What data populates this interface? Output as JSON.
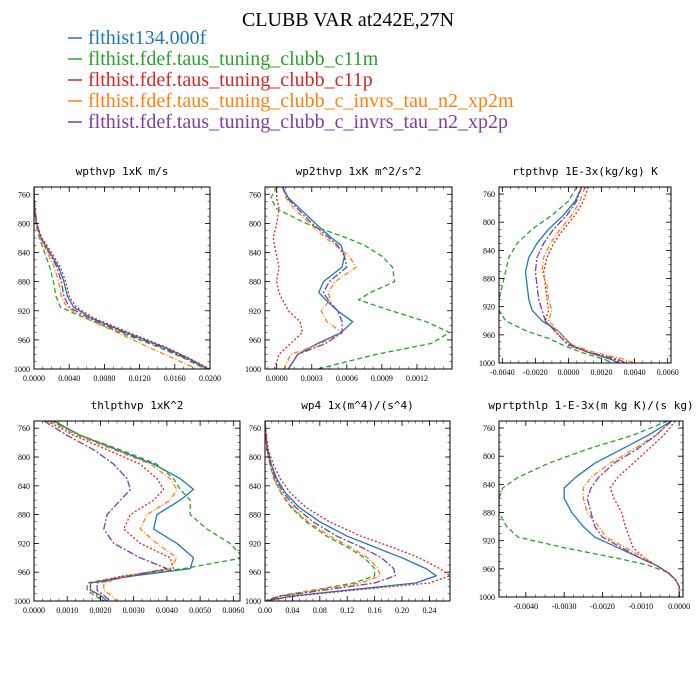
{
  "figure": {
    "title": "CLUBB VAR at242E,27N"
  },
  "legend": [
    {
      "name": "flthist134.000f",
      "color": "#1f77b4"
    },
    {
      "name": "flthist.fdef.taus_tuning_clubb_c11m",
      "color": "#2ca02c"
    },
    {
      "name": "flthist.fdef.taus_tuning_clubb_c11p",
      "color": "#d62728"
    },
    {
      "name": "flthist.fdef.taus_tuning_clubb_c_invrs_tau_n2_xp2m",
      "color": "#ff7f0e"
    },
    {
      "name": "flthist.fdef.taus_tuning_clubb_c_invrs_tau_n2_xp2p",
      "color": "#7b3f9e"
    }
  ],
  "chart_data": [
    {
      "type": "line",
      "title": "wpthvp  1xK m/s",
      "xlim": [
        0.0,
        0.02
      ],
      "ylim": [
        1000,
        750
      ],
      "xticks": [
        0.0,
        0.004,
        0.008,
        0.012,
        0.016,
        0.02
      ],
      "xticklabels": [
        "0.0000",
        "0.0040",
        "0.0080",
        "0.0120",
        "0.0160",
        "0.0200"
      ],
      "yticks": [
        760,
        800,
        840,
        880,
        920,
        960,
        1000
      ],
      "yticklabels": [
        "760",
        "800",
        "840",
        "880",
        "920",
        "960",
        "1000"
      ],
      "y": [
        750,
        760,
        780,
        800,
        820,
        840,
        860,
        880,
        900,
        915,
        930,
        950,
        970,
        985,
        1000
      ],
      "series": [
        {
          "x": [
            0.0,
            0.0,
            0.0001,
            0.0003,
            0.0008,
            0.0018,
            0.0028,
            0.0034,
            0.0038,
            0.0045,
            0.0065,
            0.0105,
            0.0148,
            0.0175,
            0.0198
          ]
        },
        {
          "x": [
            0.0,
            0.0,
            0.0001,
            0.0002,
            0.0006,
            0.0012,
            0.0018,
            0.0022,
            0.0025,
            0.003,
            0.0058,
            0.0098,
            0.0142,
            0.017,
            0.0195
          ]
        },
        {
          "x": [
            0.0,
            0.0,
            0.0001,
            0.0003,
            0.0009,
            0.002,
            0.003,
            0.0036,
            0.004,
            0.0048,
            0.0068,
            0.0108,
            0.015,
            0.0176,
            0.02
          ]
        },
        {
          "x": [
            0.0,
            0.0,
            0.0001,
            0.0002,
            0.0007,
            0.0015,
            0.0023,
            0.0028,
            0.0031,
            0.0037,
            0.0058,
            0.0095,
            0.013,
            0.0158,
            0.0185
          ]
        },
        {
          "x": [
            0.0,
            0.0,
            0.0001,
            0.0003,
            0.0008,
            0.0017,
            0.0026,
            0.0031,
            0.0034,
            0.004,
            0.0062,
            0.0102,
            0.0145,
            0.0172,
            0.0198
          ]
        }
      ]
    },
    {
      "type": "line",
      "title": "wp2thvp  1xK m^2/s^2",
      "xlim": [
        -0.0001,
        0.0015
      ],
      "ylim": [
        1000,
        750
      ],
      "xticks": [
        0.0,
        0.0003,
        0.0006,
        0.0009,
        0.0012
      ],
      "xticklabels": [
        "0.0000",
        "0.0003",
        "0.0006",
        "0.0009",
        "0.0012"
      ],
      "yticks": [
        760,
        800,
        840,
        880,
        920,
        960,
        1000
      ],
      "yticklabels": [
        "760",
        "800",
        "840",
        "880",
        "920",
        "960",
        "1000"
      ],
      "y": [
        750,
        765,
        780,
        800,
        820,
        830,
        845,
        860,
        880,
        895,
        905,
        920,
        935,
        950,
        965,
        980,
        1000
      ],
      "series": [
        {
          "x": [
            5e-05,
            0.0001,
            0.0002,
            0.00033,
            0.00047,
            0.00055,
            0.00058,
            0.00056,
            0.0004,
            0.00036,
            0.00042,
            0.00052,
            0.00065,
            0.00055,
            0.00035,
            0.00018,
            0.0001
          ]
        },
        {
          "x": [
            0.0,
            -5e-05,
            0.0,
            0.00025,
            0.0006,
            0.00075,
            0.0009,
            0.00099,
            0.00101,
            0.0008,
            0.0007,
            0.00098,
            0.00128,
            0.00148,
            0.00132,
            0.00085,
            0.00035
          ]
        },
        {
          "x": [
            0.0,
            0.0,
            2e-05,
            0.0,
            -3e-05,
            -2e-05,
            0.0,
            2e-05,
            0.0,
            2e-05,
            5e-05,
            0.0001,
            0.0002,
            0.00022,
            0.00012,
            2e-05,
            -2e-05
          ]
        },
        {
          "x": [
            5e-05,
            8e-05,
            0.00015,
            0.00028,
            0.00042,
            0.0005,
            0.00062,
            0.00068,
            0.0005,
            0.00044,
            0.00046,
            0.00038,
            0.00043,
            0.00056,
            0.00038,
            0.00012,
            6e-05
          ]
        },
        {
          "x": [
            5e-05,
            9e-05,
            0.00018,
            0.0003,
            0.00045,
            0.00052,
            0.00058,
            0.0006,
            0.00045,
            0.0004,
            0.00044,
            0.00052,
            0.00056,
            0.00056,
            0.00042,
            0.00018,
            0.0001
          ]
        }
      ]
    },
    {
      "type": "line",
      "title": "rtpthvp  1E-3x(kg/kg) K",
      "xlim": [
        -0.0042,
        0.0062
      ],
      "ylim": [
        1000,
        750
      ],
      "xticks": [
        -0.004,
        -0.002,
        0.0,
        0.002,
        0.004,
        0.006
      ],
      "xticklabels": [
        "-0.0040",
        "-0.0020",
        "0.0000",
        "0.0020",
        "0.0040",
        "0.0060"
      ],
      "yticks": [
        760,
        800,
        840,
        880,
        920,
        960,
        1000
      ],
      "yticklabels": [
        "760",
        "800",
        "840",
        "880",
        "920",
        "960",
        "1000"
      ],
      "y": [
        750,
        770,
        790,
        810,
        830,
        850,
        870,
        890,
        910,
        925,
        940,
        955,
        965,
        975,
        985,
        995,
        1000
      ],
      "series": [
        {
          "x": [
            0.0008,
            0.0004,
            -0.0003,
            -0.0012,
            -0.0019,
            -0.0024,
            -0.0026,
            -0.0025,
            -0.0024,
            -0.0022,
            -0.0016,
            -0.0006,
            -0.0002,
            0.0002,
            0.0012,
            0.0026,
            0.003
          ]
        },
        {
          "x": [
            0.0005,
            0.0,
            -0.001,
            -0.0022,
            -0.0031,
            -0.0036,
            -0.0038,
            -0.004,
            -0.0042,
            -0.0042,
            -0.0038,
            -0.0025,
            -0.0012,
            -0.0003,
            0.0008,
            0.0022,
            0.0026
          ]
        },
        {
          "x": [
            0.0012,
            0.0009,
            0.0004,
            -0.0003,
            -0.0009,
            -0.0013,
            -0.0015,
            -0.0014,
            -0.0013,
            -0.0012,
            -0.0014,
            -0.0008,
            -0.0004,
            0.0,
            0.0012,
            0.0028,
            0.0032
          ]
        },
        {
          "x": [
            0.001,
            0.0007,
            0.0002,
            -0.0005,
            -0.0011,
            -0.0015,
            -0.0016,
            -0.0013,
            -0.0012,
            -0.001,
            -0.0012,
            -0.0006,
            -0.0002,
            0.0003,
            0.0016,
            0.0034,
            0.004
          ]
        },
        {
          "x": [
            0.0008,
            0.0005,
            -0.0001,
            -0.0009,
            -0.0015,
            -0.0019,
            -0.002,
            -0.0019,
            -0.0018,
            -0.0016,
            -0.0014,
            -0.0008,
            -0.0004,
            0.0001,
            0.0013,
            0.003,
            0.0035
          ]
        }
      ]
    },
    {
      "type": "line",
      "title": "thlpthvp  1xK^2",
      "xlim": [
        0.0,
        0.0062
      ],
      "ylim": [
        1000,
        750
      ],
      "xticks": [
        0.0,
        0.001,
        0.002,
        0.003,
        0.004,
        0.005,
        0.006
      ],
      "xticklabels": [
        "0.0000",
        "0.0010",
        "0.0020",
        "0.0030",
        "0.0040",
        "0.0050",
        "0.0060"
      ],
      "yticks": [
        760,
        800,
        840,
        880,
        920,
        960,
        1000
      ],
      "yticklabels": [
        "760",
        "800",
        "840",
        "880",
        "920",
        "960",
        "1000"
      ],
      "y": [
        750,
        770,
        790,
        810,
        830,
        845,
        860,
        880,
        900,
        920,
        940,
        955,
        965,
        975,
        985,
        992,
        1000
      ],
      "series": [
        {
          "x": [
            0.0006,
            0.0014,
            0.0025,
            0.0036,
            0.0044,
            0.0048,
            0.0044,
            0.0037,
            0.0036,
            0.0043,
            0.0048,
            0.0047,
            0.003,
            0.0017,
            0.0017,
            0.002,
            0.0022
          ]
        },
        {
          "x": [
            0.0005,
            0.0014,
            0.0026,
            0.0037,
            0.0042,
            0.0044,
            0.0047,
            0.0047,
            0.0052,
            0.0059,
            0.0063,
            0.0045,
            0.0028,
            0.0016,
            0.0016,
            0.0018,
            0.0021
          ]
        },
        {
          "x": [
            0.0004,
            0.0012,
            0.0022,
            0.0032,
            0.0037,
            0.0039,
            0.0036,
            0.0029,
            0.0027,
            0.0032,
            0.0041,
            0.0042,
            0.0027,
            0.0017,
            0.0017,
            0.0019,
            0.0021
          ]
        },
        {
          "x": [
            0.0005,
            0.0013,
            0.0024,
            0.0035,
            0.0041,
            0.0043,
            0.0041,
            0.0034,
            0.0032,
            0.0037,
            0.0043,
            0.0041,
            0.0028,
            0.0021,
            0.0021,
            0.0023,
            0.0025
          ]
        },
        {
          "x": [
            0.0003,
            0.001,
            0.0018,
            0.0024,
            0.0028,
            0.0029,
            0.0026,
            0.0022,
            0.0021,
            0.0024,
            0.0032,
            0.004,
            0.0029,
            0.0019,
            0.0019,
            0.0021,
            0.0023
          ]
        }
      ]
    },
    {
      "type": "line",
      "title": "wp4  1x(m^4)/(s^4)",
      "xlim": [
        0.0,
        0.27
      ],
      "ylim": [
        1000,
        750
      ],
      "xticks": [
        0.0,
        0.04,
        0.08,
        0.12,
        0.16,
        0.2,
        0.24
      ],
      "xticklabels": [
        "0.00",
        "0.04",
        "0.08",
        "0.12",
        "0.16",
        "0.20",
        "0.24"
      ],
      "yticks": [
        760,
        800,
        840,
        880,
        920,
        960,
        1000
      ],
      "yticklabels": [
        "760",
        "800",
        "840",
        "880",
        "920",
        "960",
        "1000"
      ],
      "y": [
        750,
        770,
        790,
        810,
        830,
        850,
        870,
        890,
        910,
        925,
        940,
        955,
        965,
        975,
        985,
        993,
        1000
      ],
      "series": [
        {
          "x": [
            0.0,
            0.001,
            0.004,
            0.009,
            0.017,
            0.03,
            0.05,
            0.08,
            0.12,
            0.16,
            0.2,
            0.235,
            0.25,
            0.22,
            0.12,
            0.04,
            0.0
          ]
        },
        {
          "x": [
            0.0,
            0.001,
            0.003,
            0.007,
            0.013,
            0.023,
            0.038,
            0.06,
            0.09,
            0.12,
            0.145,
            0.16,
            0.16,
            0.13,
            0.07,
            0.02,
            0.0
          ]
        },
        {
          "x": [
            0.0,
            0.002,
            0.005,
            0.012,
            0.022,
            0.037,
            0.06,
            0.094,
            0.14,
            0.185,
            0.225,
            0.255,
            0.27,
            0.24,
            0.13,
            0.045,
            0.0
          ]
        },
        {
          "x": [
            0.0,
            0.001,
            0.003,
            0.007,
            0.013,
            0.024,
            0.04,
            0.063,
            0.095,
            0.125,
            0.15,
            0.165,
            0.168,
            0.14,
            0.075,
            0.022,
            0.0
          ]
        },
        {
          "x": [
            0.0,
            0.001,
            0.003,
            0.008,
            0.015,
            0.027,
            0.045,
            0.07,
            0.105,
            0.14,
            0.17,
            0.188,
            0.19,
            0.16,
            0.085,
            0.025,
            0.0
          ]
        }
      ]
    },
    {
      "type": "line",
      "title": "wprtpthlp  1-E-3x(m kg K)/(s kg)",
      "xlim": [
        -0.0047,
        0.0001
      ],
      "ylim": [
        1000,
        750
      ],
      "xticks": [
        -0.004,
        -0.003,
        -0.002,
        -0.001,
        0.0
      ],
      "xticklabels": [
        "-0.0040",
        "-0.0030",
        "-0.0020",
        "-0.0010",
        "0.0000"
      ],
      "yticks": [
        760,
        800,
        840,
        880,
        920,
        960,
        1000
      ],
      "yticklabels": [
        "760",
        "800",
        "840",
        "880",
        "920",
        "960",
        "1000"
      ],
      "y": [
        750,
        770,
        790,
        810,
        830,
        845,
        860,
        880,
        900,
        915,
        930,
        945,
        955,
        965,
        975,
        985,
        995,
        1000
      ],
      "series": [
        {
          "x": [
            -0.0002,
            -0.0008,
            -0.0015,
            -0.0022,
            -0.0027,
            -0.003,
            -0.003,
            -0.0028,
            -0.0025,
            -0.0022,
            -0.0016,
            -0.001,
            -0.0006,
            -0.0003,
            -0.0001,
            0.0,
            0.0,
            0.0
          ]
        },
        {
          "x": [
            -0.0003,
            -0.0012,
            -0.0024,
            -0.0034,
            -0.0042,
            -0.0046,
            -0.0047,
            -0.0047,
            -0.0045,
            -0.0042,
            -0.003,
            -0.0016,
            -0.0008,
            -0.0003,
            -0.0001,
            0.0,
            0.0,
            0.0
          ]
        },
        {
          "x": [
            -0.0001,
            -0.0004,
            -0.0008,
            -0.0012,
            -0.0016,
            -0.0018,
            -0.0017,
            -0.0015,
            -0.0014,
            -0.0013,
            -0.0012,
            -0.0009,
            -0.0006,
            -0.0003,
            -0.0001,
            0.0,
            0.0,
            0.0
          ]
        },
        {
          "x": [
            -0.0002,
            -0.0006,
            -0.0012,
            -0.0018,
            -0.0023,
            -0.0025,
            -0.0025,
            -0.0024,
            -0.0021,
            -0.0019,
            -0.0014,
            -0.0009,
            -0.0006,
            -0.0003,
            -0.0001,
            0.0,
            0.0,
            0.0
          ]
        },
        {
          "x": [
            -0.0002,
            -0.0006,
            -0.0011,
            -0.0017,
            -0.0021,
            -0.0023,
            -0.0024,
            -0.0023,
            -0.0022,
            -0.002,
            -0.0015,
            -0.001,
            -0.0006,
            -0.0003,
            -0.0001,
            0.0,
            0.0,
            0.0
          ]
        }
      ]
    }
  ]
}
